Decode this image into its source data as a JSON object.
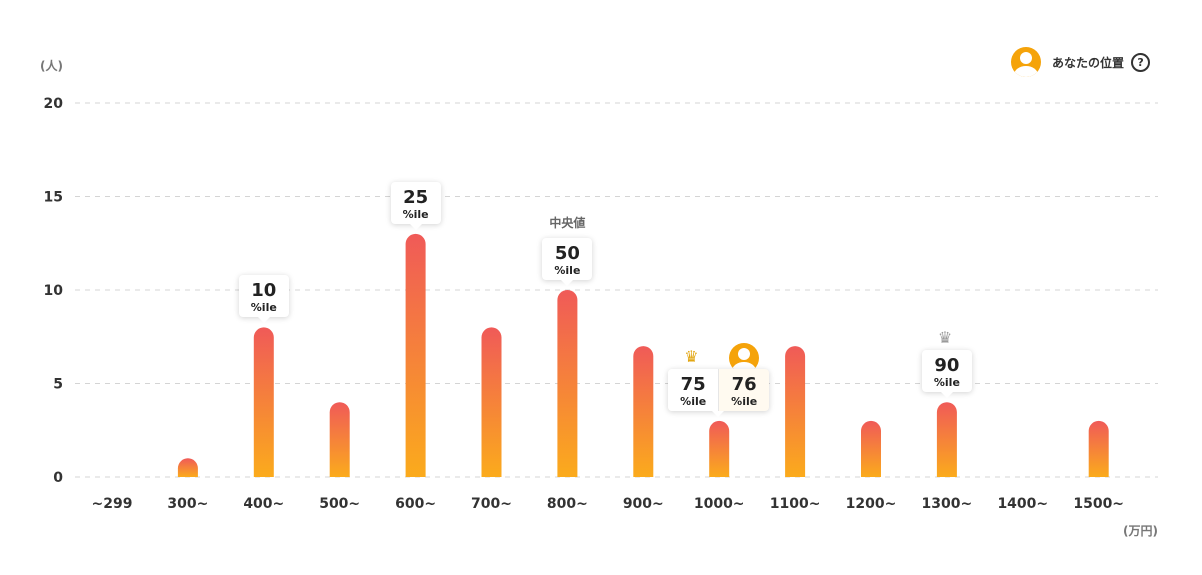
{
  "chart_data": {
    "type": "bar",
    "categories": [
      "~299",
      "300~",
      "400~",
      "500~",
      "600~",
      "700~",
      "800~",
      "900~",
      "1000~",
      "1100~",
      "1200~",
      "1300~",
      "1400~",
      "1500~"
    ],
    "values": [
      0,
      1,
      8,
      4,
      13,
      8,
      10,
      7,
      3,
      7,
      3,
      4,
      0,
      3
    ],
    "ylabel": "(人)",
    "xlabel": "(万円)",
    "ylim": [
      0,
      20
    ],
    "yticks": [
      0,
      5,
      10,
      15,
      20
    ],
    "grid": true,
    "bar_gradient": [
      "#f05a58",
      "#fbab1c"
    ],
    "annotations": [
      {
        "category": "400~",
        "value": "10",
        "unit": "%ile"
      },
      {
        "category": "600~",
        "value": "25",
        "unit": "%ile"
      },
      {
        "category": "800~",
        "value": "50",
        "unit": "%ile",
        "label": "中央値"
      },
      {
        "category": "1000~",
        "value": "75",
        "unit": "%ile",
        "marker": "crown-icon",
        "marker_color": "#e2a612"
      },
      {
        "category": "1000~",
        "value": "76",
        "unit": "%ile",
        "marker": "avatar-icon",
        "marker_color": "#f5a30a"
      },
      {
        "category": "1300~",
        "value": "90",
        "unit": "%ile",
        "marker": "crown-icon",
        "marker_color": "#9a9a9a"
      }
    ],
    "legend": {
      "label": "あなたの位置",
      "position": "top-right",
      "icon": "avatar-icon",
      "help_icon": "help-icon",
      "help_glyph": "?"
    }
  }
}
